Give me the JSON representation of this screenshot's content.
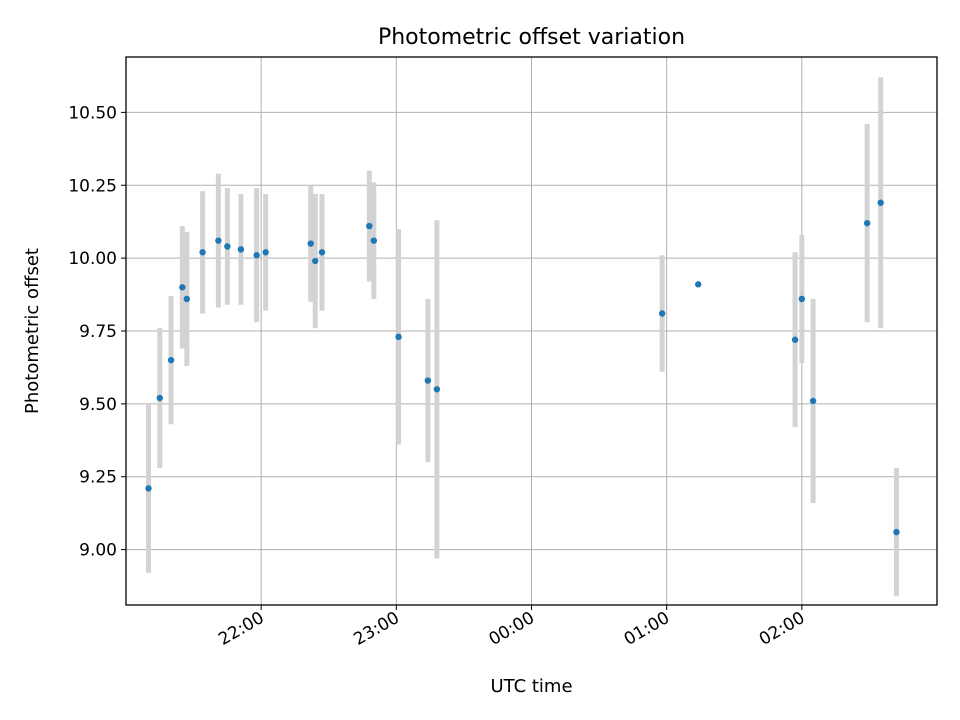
{
  "chart_data": {
    "type": "scatter",
    "title": "Photometric offset variation",
    "xlabel": "UTC time",
    "ylabel": "Photometric offset",
    "x_axis": {
      "type": "time",
      "ticks": [
        "22:00",
        "23:00",
        "00:00",
        "01:00",
        "02:00"
      ],
      "tick_rotation_deg": 30
    },
    "y_axis": {
      "ticks": [
        "9.00",
        "9.25",
        "9.50",
        "9.75",
        "10.00",
        "10.25",
        "10.50"
      ]
    },
    "xlim": [
      "21:00",
      "03:00"
    ],
    "ylim": [
      8.81,
      10.69
    ],
    "grid": true,
    "legend": "none",
    "colors": {
      "points": "#1f77b4",
      "error_bars": "#d3d3d3",
      "grid": "#b0b0b0"
    },
    "series": [
      {
        "points": [
          {
            "x": "21:10",
            "y": 9.21,
            "yerr": 0.29
          },
          {
            "x": "21:15",
            "y": 9.52,
            "yerr": 0.24
          },
          {
            "x": "21:20",
            "y": 9.65,
            "yerr": 0.22
          },
          {
            "x": "21:25",
            "y": 9.9,
            "yerr": 0.21
          },
          {
            "x": "21:27",
            "y": 9.86,
            "yerr": 0.23
          },
          {
            "x": "21:34",
            "y": 10.02,
            "yerr": 0.21
          },
          {
            "x": "21:41",
            "y": 10.06,
            "yerr": 0.23
          },
          {
            "x": "21:45",
            "y": 10.04,
            "yerr": 0.2
          },
          {
            "x": "21:51",
            "y": 10.03,
            "yerr": 0.19
          },
          {
            "x": "21:58",
            "y": 10.01,
            "yerr": 0.23
          },
          {
            "x": "22:02",
            "y": 10.02,
            "yerr": 0.2
          },
          {
            "x": "22:22",
            "y": 10.05,
            "yerr": 0.2
          },
          {
            "x": "22:24",
            "y": 9.99,
            "yerr": 0.23
          },
          {
            "x": "22:27",
            "y": 10.02,
            "yerr": 0.2
          },
          {
            "x": "22:48",
            "y": 10.11,
            "yerr": 0.19
          },
          {
            "x": "22:50",
            "y": 10.06,
            "yerr": 0.2
          },
          {
            "x": "23:01",
            "y": 9.73,
            "yerr": 0.37
          },
          {
            "x": "23:14",
            "y": 9.58,
            "yerr": 0.28
          },
          {
            "x": "23:18",
            "y": 9.55,
            "yerr": 0.58
          },
          {
            "x": "00:58",
            "y": 9.81,
            "yerr": 0.2
          },
          {
            "x": "01:14",
            "y": 9.91,
            "yerr": 0
          },
          {
            "x": "01:57",
            "y": 9.72,
            "yerr": 0.3
          },
          {
            "x": "02:00",
            "y": 9.86,
            "yerr": 0.22
          },
          {
            "x": "02:05",
            "y": 9.51,
            "yerr": 0.35
          },
          {
            "x": "02:29",
            "y": 10.12,
            "yerr": 0.34
          },
          {
            "x": "02:35",
            "y": 10.19,
            "yerr": 0.43
          },
          {
            "x": "02:42",
            "y": 9.06,
            "yerr": 0.22
          }
        ]
      }
    ]
  }
}
